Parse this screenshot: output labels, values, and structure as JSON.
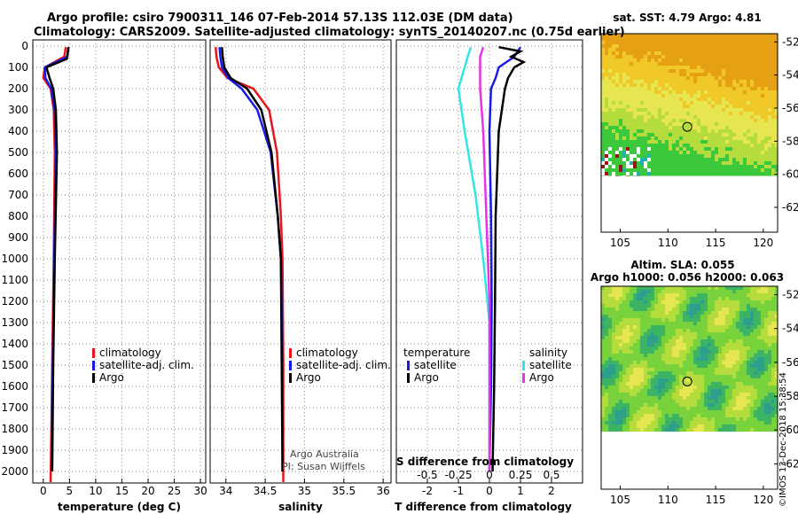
{
  "title_line1": "Argo profile: csiro 7900311_146 07-Feb-2014 57.13S 112.03E (DM data)",
  "title_line2": "Climatology: CARS2009. Satellite-adjusted climatology: synTS_20140207.nc (0.75d earlier)",
  "credit": "©IMOS 13-Dec-2018 15:38:54",
  "colors": {
    "climatology": "#e8141c",
    "satellite": "#1a1ae6",
    "argo": "#000000",
    "satellite_s": "#33e6e6",
    "salinity_sat": "#e633e6"
  },
  "chart_data": [
    {
      "id": "temperature",
      "type": "line",
      "xlabel": "temperature (deg C)",
      "ylabel": "",
      "xlim": [
        -2,
        31
      ],
      "ylim": [
        2050,
        0
      ],
      "xticks": [
        0,
        5,
        10,
        15,
        20,
        25,
        30
      ],
      "yticks": [
        0,
        100,
        200,
        300,
        400,
        500,
        600,
        700,
        800,
        900,
        1000,
        1100,
        1200,
        1300,
        1400,
        1500,
        1600,
        1700,
        1800,
        1900,
        2000
      ],
      "legend": [
        "climatology",
        "satellite-adj. clim.",
        "Argo"
      ],
      "series": [
        {
          "name": "climatology",
          "color": "#e8141c",
          "depth": [
            5,
            50,
            100,
            150,
            200,
            300,
            500,
            1000,
            1500,
            2050
          ],
          "values": [
            4.3,
            4.0,
            0.3,
            0.0,
            1.4,
            2.0,
            2.2,
            2.0,
            1.7,
            1.4
          ]
        },
        {
          "name": "satellite-adj. clim.",
          "color": "#1a1ae6",
          "depth": [
            5,
            50,
            100,
            150,
            200,
            300,
            500,
            1000,
            1500,
            2000
          ],
          "values": [
            4.8,
            4.6,
            0.3,
            0.4,
            1.5,
            2.2,
            2.4,
            2.1,
            1.8,
            1.6
          ]
        },
        {
          "name": "Argo",
          "color": "#000000",
          "depth": [
            5,
            60,
            100,
            150,
            200,
            300,
            500,
            1000,
            1500,
            2000
          ],
          "values": [
            4.8,
            4.5,
            0.6,
            1.2,
            1.9,
            2.4,
            2.6,
            2.2,
            1.9,
            1.7
          ]
        }
      ]
    },
    {
      "id": "salinity",
      "type": "line",
      "xlabel": "salinity",
      "ylabel": "",
      "xlim": [
        33.8,
        36.1
      ],
      "ylim": [
        2050,
        0
      ],
      "xticks": [
        34,
        34.5,
        35,
        35.5,
        36
      ],
      "xticklabels": [
        "34",
        "34.5",
        "35",
        "35.5",
        "36"
      ],
      "legend": [
        "climatology",
        "satellite-adj. clim.",
        "Argo"
      ],
      "annotation": [
        "Argo Australia",
        "PI: Susan Wijffels"
      ],
      "series": [
        {
          "name": "climatology",
          "color": "#e8141c",
          "depth": [
            5,
            50,
            100,
            150,
            200,
            300,
            500,
            800,
            1000,
            1500,
            2050
          ],
          "values": [
            33.87,
            33.88,
            33.91,
            34.02,
            34.35,
            34.55,
            34.65,
            34.7,
            34.72,
            34.73,
            34.73
          ]
        },
        {
          "name": "satellite-adj. clim.",
          "color": "#1a1ae6",
          "depth": [
            5,
            50,
            100,
            150,
            200,
            300,
            500,
            800,
            1000,
            1500,
            2000
          ],
          "values": [
            33.92,
            33.93,
            33.95,
            34.03,
            34.2,
            34.4,
            34.57,
            34.66,
            34.7,
            34.72,
            34.72
          ]
        },
        {
          "name": "Argo",
          "color": "#000000",
          "depth": [
            5,
            50,
            100,
            150,
            200,
            300,
            500,
            800,
            1000,
            1500,
            2000
          ],
          "values": [
            33.95,
            33.96,
            33.98,
            34.06,
            34.27,
            34.45,
            34.58,
            34.66,
            34.7,
            34.71,
            34.72
          ]
        }
      ]
    },
    {
      "id": "difference",
      "type": "line",
      "xlabel": "T difference from climatology",
      "xlabel_top": "S difference from climatology",
      "xlim": [
        -3,
        3
      ],
      "ylim": [
        2050,
        0
      ],
      "xticks": [
        -2,
        -1,
        0,
        1,
        2
      ],
      "xticklabels": [
        "-2",
        "-1",
        "0",
        "1",
        "2"
      ],
      "xticks_top": [
        -2,
        -1,
        0,
        1,
        2
      ],
      "xticklabels_top": [
        "-0.5",
        "-0.25",
        "0",
        "0.25",
        "0.5"
      ],
      "legend_title_left": "temperature",
      "legend_title_right": "salinity",
      "legend_left": [
        "satellite",
        "Argo"
      ],
      "legend_right": [
        "satellite",
        "Argo"
      ],
      "series": [
        {
          "name": "T satellite",
          "color": "#1a1ae6",
          "depth": [
            5,
            50,
            100,
            150,
            200,
            400,
            800,
            1200,
            1600,
            2000
          ],
          "values": [
            1.0,
            0.8,
            0.3,
            0.2,
            0.05,
            0.0,
            0.05,
            0.07,
            0.05,
            0.0
          ]
        },
        {
          "name": "T Argo",
          "color": "#000000",
          "depth": [
            5,
            25,
            50,
            75,
            100,
            150,
            200,
            400,
            800,
            1200,
            1600,
            2000
          ],
          "values": [
            0.3,
            1.0,
            0.7,
            1.1,
            0.8,
            0.6,
            0.5,
            0.3,
            0.2,
            0.18,
            0.15,
            0.1
          ]
        },
        {
          "name": "S satellite",
          "color": "#33e6e6",
          "depth": [
            5,
            50,
            100,
            150,
            200,
            400,
            700,
            1000,
            1300,
            2000
          ],
          "values": [
            -0.6,
            -0.7,
            -0.8,
            -0.9,
            -1.0,
            -0.8,
            -0.45,
            -0.2,
            0.0,
            0.0
          ]
        },
        {
          "name": "S Argo",
          "color": "#e633e6",
          "depth": [
            5,
            50,
            100,
            150,
            200,
            400,
            800,
            1200,
            1600,
            2000
          ],
          "values": [
            -0.2,
            -0.3,
            -0.3,
            -0.3,
            -0.3,
            -0.2,
            -0.1,
            0.0,
            0.0,
            0.0
          ]
        }
      ]
    },
    {
      "id": "sst_map",
      "type": "heatmap",
      "title": "sat. SST: 4.79 Argo: 4.81",
      "xticks": [
        105,
        110,
        115,
        120
      ],
      "yticks": [
        -52,
        -54,
        -56,
        -58,
        -60,
        -62
      ],
      "xlim": [
        103,
        121.5
      ],
      "ylim": [
        -63.5,
        -51.5
      ],
      "marker": {
        "lon": 112.03,
        "lat": -57.13
      }
    },
    {
      "id": "sla_map",
      "type": "heatmap",
      "title_line1": "Altim. SLA: 0.055",
      "title_line2": "Argo h1000: 0.056 h2000: 0.063",
      "xticks": [
        105,
        110,
        115,
        120
      ],
      "yticks": [
        -52,
        -54,
        -56,
        -58,
        -60,
        -62
      ],
      "xlim": [
        103,
        121.5
      ],
      "ylim": [
        -63.5,
        -51.5
      ],
      "marker": {
        "lon": 112.03,
        "lat": -57.13
      }
    }
  ]
}
